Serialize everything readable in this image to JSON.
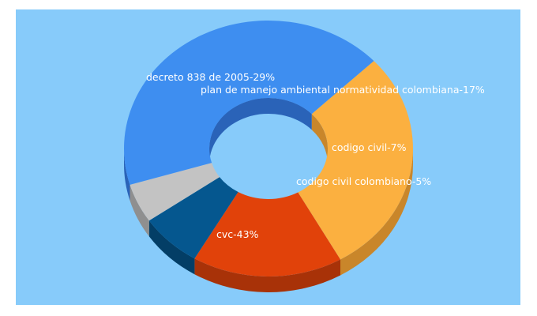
{
  "colors": {
    "background": "#ffffff",
    "panel": "#87cbfa"
  },
  "chart_data": {
    "type": "pie",
    "variant": "3d-donut",
    "title": "",
    "slices": [
      {
        "label": "decreto 838 de 2005-29%",
        "name": "decreto 838 de 2005",
        "value": 29,
        "color": "#fbb040",
        "side": "#c9862a"
      },
      {
        "label": "plan de manejo ambiental normatividad colombiana-17%",
        "name": "plan de manejo ambiental normatividad colombiana",
        "value": 17,
        "color": "#e1420a",
        "side": "#a83208"
      },
      {
        "label": "codigo civil-7%",
        "name": "codigo civil",
        "value": 7,
        "color": "#05578f",
        "side": "#033e66"
      },
      {
        "label": "codigo civil colombiano-5%",
        "name": "codigo civil colombiano",
        "value": 5,
        "color": "#c3c3c3",
        "side": "#8f8f8f"
      },
      {
        "label": "cvc-43%",
        "name": "cvc",
        "value": 43,
        "color": "#3e8ef0",
        "side": "#2a63b8"
      }
    ]
  }
}
